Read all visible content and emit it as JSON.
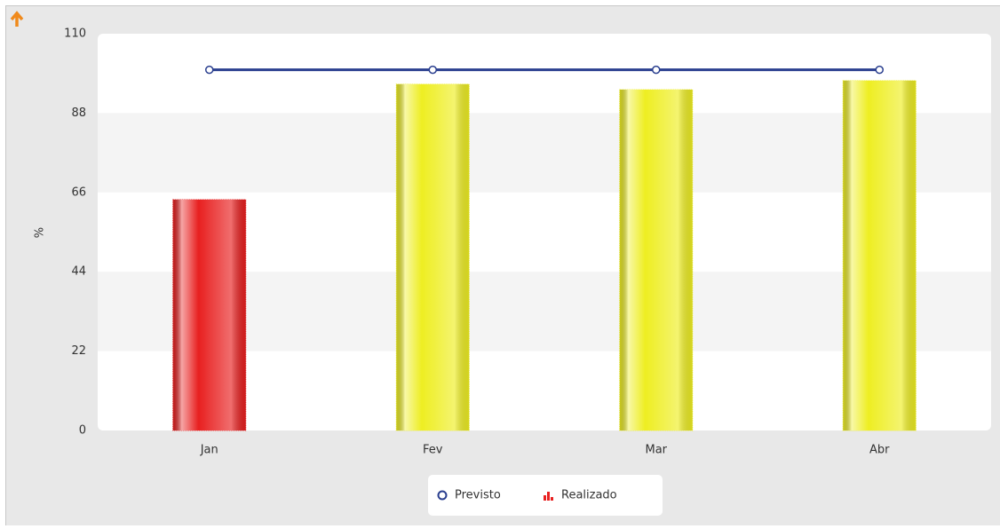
{
  "chart_data": {
    "type": "bar",
    "y_label": "%",
    "categories": [
      "Jan",
      "Fev",
      "Mar",
      "Abr"
    ],
    "series": [
      {
        "name": "Previsto",
        "type": "line",
        "color": "#2a3f8f",
        "values": [
          100,
          100,
          100,
          100
        ]
      },
      {
        "name": "Realizado",
        "type": "bar",
        "color": "#e82020",
        "colors": [
          "#e82020",
          "#eeee22",
          "#eeee22",
          "#eeee22"
        ],
        "values": [
          64,
          96,
          94.5,
          97
        ]
      }
    ],
    "ylim": [
      0,
      110
    ],
    "yticks": [
      0,
      22,
      44,
      66,
      88,
      110
    ],
    "grid": true
  }
}
